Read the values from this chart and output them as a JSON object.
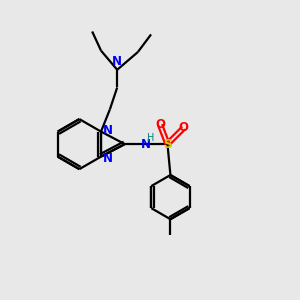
{
  "bg_color": "#e8e8e8",
  "bond_color": "#000000",
  "N_color": "#0000ff",
  "S_color": "#cccc00",
  "O_color": "#ff0000",
  "H_color": "#008080",
  "line_width": 1.6,
  "figsize": [
    3.0,
    3.0
  ],
  "dpi": 100,
  "xlim": [
    0,
    10
  ],
  "ylim": [
    0,
    10
  ]
}
